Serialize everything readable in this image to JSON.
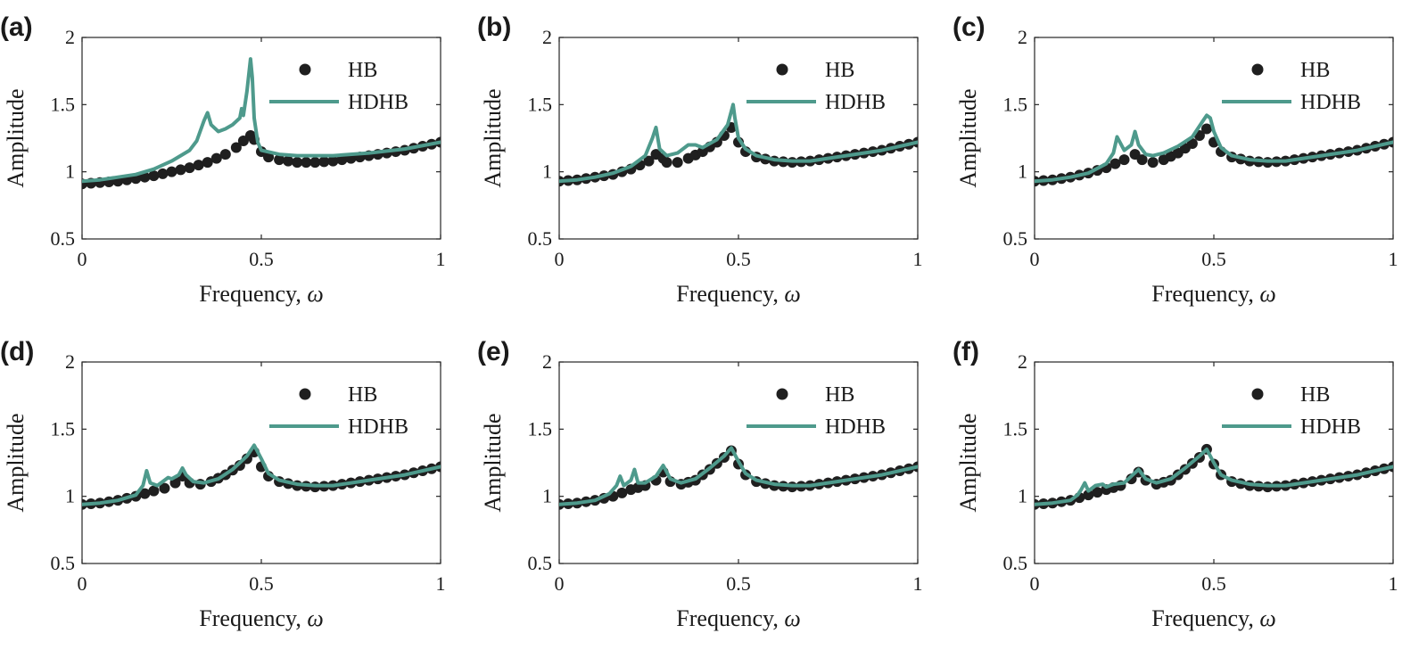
{
  "colors": {
    "hb": "#1f1f1f",
    "hdhb": "#4e9a8c",
    "axes": "#262626"
  },
  "chart_data": [
    {
      "type": "line",
      "panel_label": "(a)",
      "xlabel": "Frequency, ",
      "xlabel_symbol": "ω",
      "ylabel": "Amplitude",
      "xlim": [
        0,
        1
      ],
      "ylim": [
        0.5,
        2
      ],
      "xticks": [
        0,
        0.5,
        1
      ],
      "xtick_labels": [
        "0",
        "0.5",
        "1"
      ],
      "yticks": [
        0.5,
        1,
        1.5,
        2
      ],
      "ytick_labels": [
        "0.5",
        "1",
        "1.5",
        "2"
      ],
      "legend_position": "top-right",
      "legend": [
        "HB",
        "HDHB"
      ],
      "series": [
        {
          "name": "HB",
          "style": "markers",
          "x": [
            0,
            0.05,
            0.1,
            0.15,
            0.2,
            0.25,
            0.3,
            0.35,
            0.4,
            0.43,
            0.45,
            0.47,
            0.48,
            0.5,
            0.52,
            0.55,
            0.6,
            0.65,
            0.7,
            0.75,
            0.8,
            0.85,
            0.9,
            0.95,
            1.0
          ],
          "y": [
            0.91,
            0.92,
            0.93,
            0.95,
            0.97,
            1.0,
            1.03,
            1.07,
            1.13,
            1.18,
            1.23,
            1.27,
            1.24,
            1.15,
            1.11,
            1.09,
            1.07,
            1.07,
            1.08,
            1.1,
            1.12,
            1.14,
            1.16,
            1.19,
            1.22
          ]
        },
        {
          "name": "HDHB",
          "style": "line",
          "x": [
            0,
            0.05,
            0.1,
            0.15,
            0.2,
            0.25,
            0.3,
            0.32,
            0.34,
            0.35,
            0.36,
            0.38,
            0.4,
            0.42,
            0.44,
            0.445,
            0.45,
            0.46,
            0.47,
            0.475,
            0.48,
            0.49,
            0.5,
            0.55,
            0.6,
            0.7,
            0.8,
            0.9,
            1.0
          ],
          "y": [
            0.93,
            0.94,
            0.96,
            0.98,
            1.02,
            1.08,
            1.16,
            1.23,
            1.38,
            1.44,
            1.35,
            1.3,
            1.32,
            1.35,
            1.4,
            1.47,
            1.42,
            1.6,
            1.84,
            1.7,
            1.4,
            1.22,
            1.16,
            1.13,
            1.12,
            1.12,
            1.14,
            1.17,
            1.22
          ]
        }
      ]
    },
    {
      "type": "line",
      "panel_label": "(b)",
      "xlabel": "Frequency, ",
      "xlabel_symbol": "ω",
      "ylabel": "Amplitude",
      "xlim": [
        0,
        1
      ],
      "ylim": [
        0.5,
        2
      ],
      "xticks": [
        0,
        0.5,
        1
      ],
      "xtick_labels": [
        "0",
        "0.5",
        "1"
      ],
      "yticks": [
        0.5,
        1,
        1.5,
        2
      ],
      "ytick_labels": [
        "0.5",
        "1",
        "1.5",
        "2"
      ],
      "legend_position": "top-right",
      "legend": [
        "HB",
        "HDHB"
      ],
      "series": [
        {
          "name": "HB",
          "style": "markers",
          "x": [
            0,
            0.05,
            0.1,
            0.15,
            0.2,
            0.25,
            0.27,
            0.29,
            0.3,
            0.33,
            0.36,
            0.4,
            0.44,
            0.46,
            0.48,
            0.5,
            0.52,
            0.55,
            0.6,
            0.65,
            0.7,
            0.75,
            0.8,
            0.85,
            0.9,
            0.95,
            1.0
          ],
          "y": [
            0.93,
            0.94,
            0.96,
            0.98,
            1.02,
            1.08,
            1.13,
            1.1,
            1.07,
            1.07,
            1.1,
            1.15,
            1.22,
            1.27,
            1.33,
            1.22,
            1.15,
            1.11,
            1.08,
            1.07,
            1.08,
            1.1,
            1.12,
            1.14,
            1.16,
            1.19,
            1.22
          ]
        },
        {
          "name": "HDHB",
          "style": "line",
          "x": [
            0,
            0.05,
            0.1,
            0.15,
            0.2,
            0.24,
            0.26,
            0.27,
            0.28,
            0.3,
            0.33,
            0.36,
            0.38,
            0.4,
            0.44,
            0.47,
            0.485,
            0.49,
            0.5,
            0.52,
            0.55,
            0.6,
            0.65,
            0.7,
            0.8,
            0.9,
            1.0
          ],
          "y": [
            0.93,
            0.94,
            0.96,
            0.99,
            1.04,
            1.12,
            1.25,
            1.33,
            1.17,
            1.12,
            1.14,
            1.2,
            1.2,
            1.18,
            1.24,
            1.35,
            1.5,
            1.4,
            1.25,
            1.17,
            1.12,
            1.09,
            1.08,
            1.08,
            1.12,
            1.16,
            1.22
          ]
        }
      ]
    },
    {
      "type": "line",
      "panel_label": "(c)",
      "xlabel": "Frequency, ",
      "xlabel_symbol": "ω",
      "ylabel": "Amplitude",
      "xlim": [
        0,
        1
      ],
      "ylim": [
        0.5,
        2
      ],
      "xticks": [
        0,
        0.5,
        1
      ],
      "xtick_labels": [
        "0",
        "0.5",
        "1"
      ],
      "yticks": [
        0.5,
        1,
        1.5,
        2
      ],
      "ytick_labels": [
        "0.5",
        "1",
        "1.5",
        "2"
      ],
      "legend_position": "top-right",
      "legend": [
        "HB",
        "HDHB"
      ],
      "series": [
        {
          "name": "HB",
          "style": "markers",
          "x": [
            0,
            0.05,
            0.1,
            0.15,
            0.2,
            0.25,
            0.28,
            0.3,
            0.33,
            0.36,
            0.4,
            0.44,
            0.46,
            0.48,
            0.5,
            0.52,
            0.55,
            0.6,
            0.65,
            0.7,
            0.75,
            0.8,
            0.85,
            0.9,
            0.95,
            1.0
          ],
          "y": [
            0.93,
            0.94,
            0.96,
            0.99,
            1.03,
            1.09,
            1.13,
            1.09,
            1.07,
            1.09,
            1.14,
            1.21,
            1.27,
            1.32,
            1.22,
            1.15,
            1.11,
            1.08,
            1.07,
            1.08,
            1.1,
            1.12,
            1.14,
            1.16,
            1.19,
            1.22
          ]
        },
        {
          "name": "HDHB",
          "style": "line",
          "x": [
            0,
            0.05,
            0.1,
            0.15,
            0.2,
            0.22,
            0.23,
            0.25,
            0.27,
            0.28,
            0.29,
            0.31,
            0.33,
            0.36,
            0.4,
            0.44,
            0.47,
            0.48,
            0.49,
            0.5,
            0.52,
            0.55,
            0.6,
            0.65,
            0.7,
            0.8,
            0.9,
            1.0
          ],
          "y": [
            0.93,
            0.94,
            0.96,
            0.99,
            1.06,
            1.14,
            1.26,
            1.16,
            1.2,
            1.3,
            1.2,
            1.13,
            1.12,
            1.14,
            1.19,
            1.26,
            1.38,
            1.42,
            1.4,
            1.3,
            1.18,
            1.12,
            1.09,
            1.08,
            1.08,
            1.12,
            1.16,
            1.22
          ]
        }
      ]
    },
    {
      "type": "line",
      "panel_label": "(d)",
      "xlabel": "Frequency, ",
      "xlabel_symbol": "ω",
      "ylabel": "Amplitude",
      "xlim": [
        0,
        1
      ],
      "ylim": [
        0.5,
        2
      ],
      "xticks": [
        0,
        0.5,
        1
      ],
      "xtick_labels": [
        "0",
        "0.5",
        "1"
      ],
      "yticks": [
        0.5,
        1,
        1.5,
        2
      ],
      "ytick_labels": [
        "0.5",
        "1",
        "1.5",
        "2"
      ],
      "legend_position": "top-right",
      "legend": [
        "HB",
        "HDHB"
      ],
      "series": [
        {
          "name": "HB",
          "style": "markers",
          "x": [
            0,
            0.05,
            0.1,
            0.15,
            0.2,
            0.23,
            0.26,
            0.28,
            0.3,
            0.33,
            0.36,
            0.4,
            0.44,
            0.46,
            0.48,
            0.5,
            0.52,
            0.55,
            0.6,
            0.65,
            0.7,
            0.75,
            0.8,
            0.85,
            0.9,
            0.95,
            1.0
          ],
          "y": [
            0.94,
            0.95,
            0.97,
            1.0,
            1.04,
            1.06,
            1.1,
            1.15,
            1.1,
            1.09,
            1.11,
            1.16,
            1.23,
            1.28,
            1.33,
            1.22,
            1.15,
            1.11,
            1.08,
            1.07,
            1.08,
            1.1,
            1.12,
            1.14,
            1.16,
            1.19,
            1.22
          ]
        },
        {
          "name": "HDHB",
          "style": "line",
          "x": [
            0,
            0.05,
            0.1,
            0.15,
            0.17,
            0.18,
            0.19,
            0.21,
            0.23,
            0.24,
            0.25,
            0.27,
            0.28,
            0.29,
            0.31,
            0.34,
            0.38,
            0.42,
            0.46,
            0.48,
            0.5,
            0.52,
            0.55,
            0.6,
            0.65,
            0.7,
            0.8,
            0.9,
            1.0
          ],
          "y": [
            0.94,
            0.95,
            0.97,
            1.01,
            1.08,
            1.19,
            1.1,
            1.08,
            1.12,
            1.14,
            1.13,
            1.16,
            1.21,
            1.16,
            1.11,
            1.1,
            1.13,
            1.2,
            1.3,
            1.38,
            1.28,
            1.17,
            1.12,
            1.09,
            1.08,
            1.08,
            1.12,
            1.16,
            1.22
          ]
        }
      ]
    },
    {
      "type": "line",
      "panel_label": "(e)",
      "xlabel": "Frequency, ",
      "xlabel_symbol": "ω",
      "ylabel": "Amplitude",
      "xlim": [
        0,
        1
      ],
      "ylim": [
        0.5,
        2
      ],
      "xticks": [
        0,
        0.5,
        1
      ],
      "xtick_labels": [
        "0",
        "0.5",
        "1"
      ],
      "yticks": [
        0.5,
        1,
        1.5,
        2
      ],
      "ytick_labels": [
        "0.5",
        "1",
        "1.5",
        "2"
      ],
      "legend_position": "top-right",
      "legend": [
        "HB",
        "HDHB"
      ],
      "series": [
        {
          "name": "HB",
          "style": "markers",
          "x": [
            0,
            0.05,
            0.1,
            0.15,
            0.2,
            0.24,
            0.27,
            0.29,
            0.31,
            0.34,
            0.38,
            0.42,
            0.46,
            0.48,
            0.5,
            0.52,
            0.55,
            0.6,
            0.65,
            0.7,
            0.75,
            0.8,
            0.85,
            0.9,
            0.95,
            1.0
          ],
          "y": [
            0.94,
            0.95,
            0.97,
            1.0,
            1.05,
            1.08,
            1.12,
            1.18,
            1.11,
            1.09,
            1.12,
            1.2,
            1.29,
            1.34,
            1.24,
            1.16,
            1.11,
            1.08,
            1.07,
            1.08,
            1.1,
            1.12,
            1.14,
            1.16,
            1.19,
            1.22
          ]
        },
        {
          "name": "HDHB",
          "style": "line",
          "x": [
            0,
            0.05,
            0.1,
            0.14,
            0.16,
            0.17,
            0.18,
            0.2,
            0.21,
            0.22,
            0.24,
            0.27,
            0.29,
            0.31,
            0.34,
            0.38,
            0.42,
            0.46,
            0.48,
            0.5,
            0.52,
            0.55,
            0.6,
            0.65,
            0.7,
            0.8,
            0.9,
            1.0
          ],
          "y": [
            0.94,
            0.95,
            0.97,
            1.02,
            1.08,
            1.15,
            1.08,
            1.12,
            1.2,
            1.1,
            1.1,
            1.15,
            1.23,
            1.13,
            1.1,
            1.13,
            1.21,
            1.3,
            1.36,
            1.26,
            1.17,
            1.12,
            1.09,
            1.08,
            1.08,
            1.12,
            1.16,
            1.22
          ]
        }
      ]
    },
    {
      "type": "line",
      "panel_label": "(f)",
      "xlabel": "Frequency, ",
      "xlabel_symbol": "ω",
      "ylabel": "Amplitude",
      "xlim": [
        0,
        1
      ],
      "ylim": [
        0.5,
        2
      ],
      "xticks": [
        0,
        0.5,
        1
      ],
      "xtick_labels": [
        "0",
        "0.5",
        "1"
      ],
      "yticks": [
        0.5,
        1,
        1.5,
        2
      ],
      "ytick_labels": [
        "0.5",
        "1",
        "1.5",
        "2"
      ],
      "legend_position": "top-right",
      "legend": [
        "HB",
        "HDHB"
      ],
      "series": [
        {
          "name": "HB",
          "style": "markers",
          "x": [
            0,
            0.05,
            0.1,
            0.15,
            0.2,
            0.24,
            0.27,
            0.29,
            0.31,
            0.34,
            0.38,
            0.42,
            0.46,
            0.48,
            0.5,
            0.52,
            0.55,
            0.6,
            0.65,
            0.7,
            0.75,
            0.8,
            0.85,
            0.9,
            0.95,
            1.0
          ],
          "y": [
            0.94,
            0.95,
            0.97,
            1.01,
            1.05,
            1.08,
            1.13,
            1.18,
            1.12,
            1.09,
            1.12,
            1.2,
            1.29,
            1.35,
            1.24,
            1.16,
            1.11,
            1.08,
            1.07,
            1.08,
            1.1,
            1.12,
            1.14,
            1.16,
            1.19,
            1.22
          ]
        },
        {
          "name": "HDHB",
          "style": "line",
          "x": [
            0,
            0.05,
            0.1,
            0.12,
            0.13,
            0.14,
            0.15,
            0.17,
            0.19,
            0.2,
            0.22,
            0.25,
            0.27,
            0.29,
            0.31,
            0.34,
            0.38,
            0.42,
            0.46,
            0.48,
            0.5,
            0.52,
            0.55,
            0.6,
            0.65,
            0.7,
            0.8,
            0.9,
            1.0
          ],
          "y": [
            0.94,
            0.95,
            0.97,
            1.01,
            1.05,
            1.1,
            1.04,
            1.08,
            1.09,
            1.07,
            1.09,
            1.1,
            1.15,
            1.2,
            1.13,
            1.1,
            1.13,
            1.21,
            1.3,
            1.35,
            1.25,
            1.16,
            1.12,
            1.09,
            1.08,
            1.08,
            1.12,
            1.16,
            1.22
          ]
        }
      ]
    }
  ]
}
